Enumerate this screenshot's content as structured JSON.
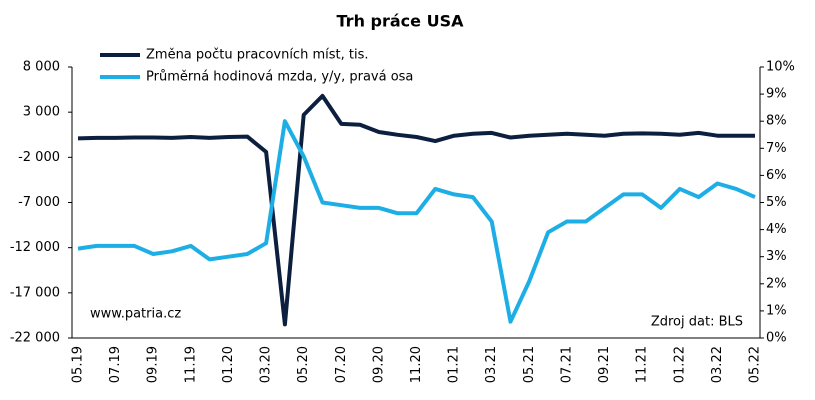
{
  "chart_data": {
    "type": "line",
    "title": "Trh práce USA",
    "categories": [
      "05.19",
      null,
      "07.19",
      null,
      "09.19",
      null,
      "11.19",
      null,
      "01.20",
      null,
      "03.20",
      null,
      "05.20",
      null,
      "07.20",
      null,
      "09.20",
      null,
      "11.20",
      null,
      "01.21",
      null,
      "03.21",
      null,
      "05.21",
      null,
      "07.21",
      null,
      "09.21",
      null,
      "11.21",
      null,
      "01.22",
      null,
      "03.22",
      null,
      "05.22"
    ],
    "series": [
      {
        "name": "Změna počtu pracovních míst, tis.",
        "color": "#0c1f3f",
        "values": [
          100,
          150,
          150,
          200,
          200,
          150,
          250,
          150,
          250,
          300,
          -1400,
          -20500,
          2700,
          4800,
          1700,
          1600,
          800,
          500,
          250,
          -200,
          400,
          600,
          700,
          200,
          400,
          500,
          600,
          500,
          400,
          600,
          650,
          600,
          500,
          700,
          400,
          400,
          400
        ]
      },
      {
        "name": "Průměrná hodinová mzda, y/y, pravá osa",
        "color": "#1eaee6",
        "axis": "y2",
        "values": [
          3.3,
          3.4,
          3.4,
          3.4,
          3.1,
          3.2,
          3.4,
          2.9,
          3.0,
          3.1,
          3.5,
          8.0,
          6.7,
          5.0,
          4.9,
          4.8,
          4.8,
          4.6,
          4.6,
          5.5,
          5.3,
          5.2,
          4.3,
          0.6,
          2.1,
          3.9,
          4.3,
          4.3,
          4.8,
          5.3,
          5.3,
          4.8,
          5.5,
          5.2,
          5.7,
          5.5,
          5.2
        ]
      }
    ],
    "ylim": [
      -22000,
      8000
    ],
    "yticks": [
      {
        "value": -22000,
        "label": "-22 000"
      },
      {
        "value": -17000,
        "label": "-17 000"
      },
      {
        "value": -12000,
        "label": "-12 000"
      },
      {
        "value": -7000,
        "label": "-7 000"
      },
      {
        "value": -2000,
        "label": "-2 000"
      },
      {
        "value": 3000,
        "label": "3 000"
      },
      {
        "value": 8000,
        "label": "8 000"
      }
    ],
    "y2lim": [
      0,
      10
    ],
    "y2ticks": [
      {
        "value": 0,
        "label": "0%"
      },
      {
        "value": 1,
        "label": "1%"
      },
      {
        "value": 2,
        "label": "2%"
      },
      {
        "value": 3,
        "label": "3%"
      },
      {
        "value": 4,
        "label": "4%"
      },
      {
        "value": 5,
        "label": "5%"
      },
      {
        "value": 6,
        "label": "6%"
      },
      {
        "value": 7,
        "label": "7%"
      },
      {
        "value": 8,
        "label": "8%"
      },
      {
        "value": 9,
        "label": "9%"
      },
      {
        "value": 10,
        "label": "10%"
      }
    ],
    "grid": false,
    "legend": "top-left",
    "annotations": [
      "www.patria.cz",
      "Zdroj dat: BLS"
    ]
  }
}
